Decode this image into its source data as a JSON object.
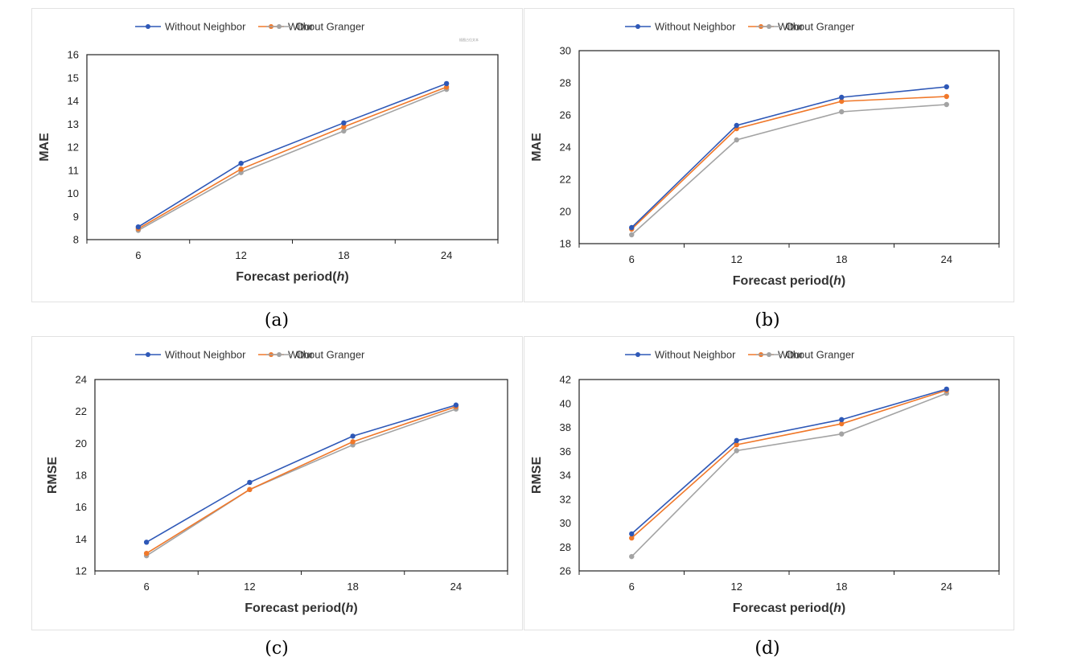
{
  "colors": {
    "Without Neighbor": "#2e58b7",
    "Without Granger": "#f0782a",
    "Our": "#a3a3a3"
  },
  "captions": [
    "(a)",
    "(b)",
    "(c)",
    "(d)"
  ],
  "chart_data": [
    {
      "type": "line",
      "title": "",
      "xlabel": "Forecast period(h)",
      "xlabel_prefix": "Forecast period(",
      "xlabel_var": "h",
      "xlabel_suffix": ")",
      "ylabel": "MAE",
      "categories": [
        "6",
        "12",
        "18",
        "24"
      ],
      "ylim": [
        8,
        16
      ],
      "yticks": [
        "8",
        "9",
        "10",
        "11",
        "12",
        "13",
        "14",
        "15",
        "16"
      ],
      "legend_position": "top",
      "annotation": "插图占位文本",
      "series": [
        {
          "name": "Without Neighbor",
          "values": [
            8.55,
            11.3,
            13.05,
            14.75
          ]
        },
        {
          "name": "Without Granger",
          "values": [
            8.47,
            11.05,
            12.88,
            14.6
          ]
        },
        {
          "name": "Our",
          "values": [
            8.4,
            10.9,
            12.7,
            14.5
          ]
        }
      ]
    },
    {
      "type": "line",
      "title": "",
      "xlabel": "Forecast period(h)",
      "xlabel_prefix": "Forecast period(",
      "xlabel_var": "h",
      "xlabel_suffix": ")",
      "ylabel": "MAE",
      "categories": [
        "6",
        "12",
        "18",
        "24"
      ],
      "ylim": [
        18,
        30
      ],
      "yticks": [
        "18",
        "20",
        "22",
        "24",
        "26",
        "28",
        "30"
      ],
      "legend_position": "top",
      "series": [
        {
          "name": "Without Neighbor",
          "values": [
            19.0,
            25.35,
            27.1,
            27.75
          ]
        },
        {
          "name": "Without Granger",
          "values": [
            18.9,
            25.15,
            26.85,
            27.15
          ]
        },
        {
          "name": "Our",
          "values": [
            18.55,
            24.45,
            26.2,
            26.65
          ]
        }
      ]
    },
    {
      "type": "line",
      "title": "",
      "xlabel": "Forecast period(h)",
      "xlabel_prefix": "Forecast period(",
      "xlabel_var": "h",
      "xlabel_suffix": ")",
      "ylabel": "RMSE",
      "categories": [
        "6",
        "12",
        "18",
        "24"
      ],
      "ylim": [
        12,
        24
      ],
      "yticks": [
        "12",
        "14",
        "16",
        "18",
        "20",
        "22",
        "24"
      ],
      "legend_position": "top",
      "series": [
        {
          "name": "Without Neighbor",
          "values": [
            13.8,
            17.55,
            20.45,
            22.4
          ]
        },
        {
          "name": "Without Granger",
          "values": [
            13.1,
            17.1,
            20.1,
            22.3
          ]
        },
        {
          "name": "Our",
          "values": [
            12.95,
            17.1,
            19.9,
            22.15
          ]
        }
      ]
    },
    {
      "type": "line",
      "title": "",
      "xlabel": "Forecast period(h)",
      "xlabel_prefix": "Forecast period(",
      "xlabel_var": "h",
      "xlabel_suffix": ")",
      "ylabel": "RMSE",
      "categories": [
        "6",
        "12",
        "18",
        "24"
      ],
      "ylim": [
        26,
        42
      ],
      "yticks": [
        "26",
        "28",
        "30",
        "32",
        "34",
        "36",
        "38",
        "40",
        "42"
      ],
      "legend_position": "top",
      "series": [
        {
          "name": "Without Neighbor",
          "values": [
            29.1,
            36.9,
            38.65,
            41.2
          ]
        },
        {
          "name": "Without Granger",
          "values": [
            28.75,
            36.55,
            38.3,
            41.1
          ]
        },
        {
          "name": "Our",
          "values": [
            27.2,
            36.05,
            37.45,
            40.85
          ]
        }
      ]
    }
  ]
}
